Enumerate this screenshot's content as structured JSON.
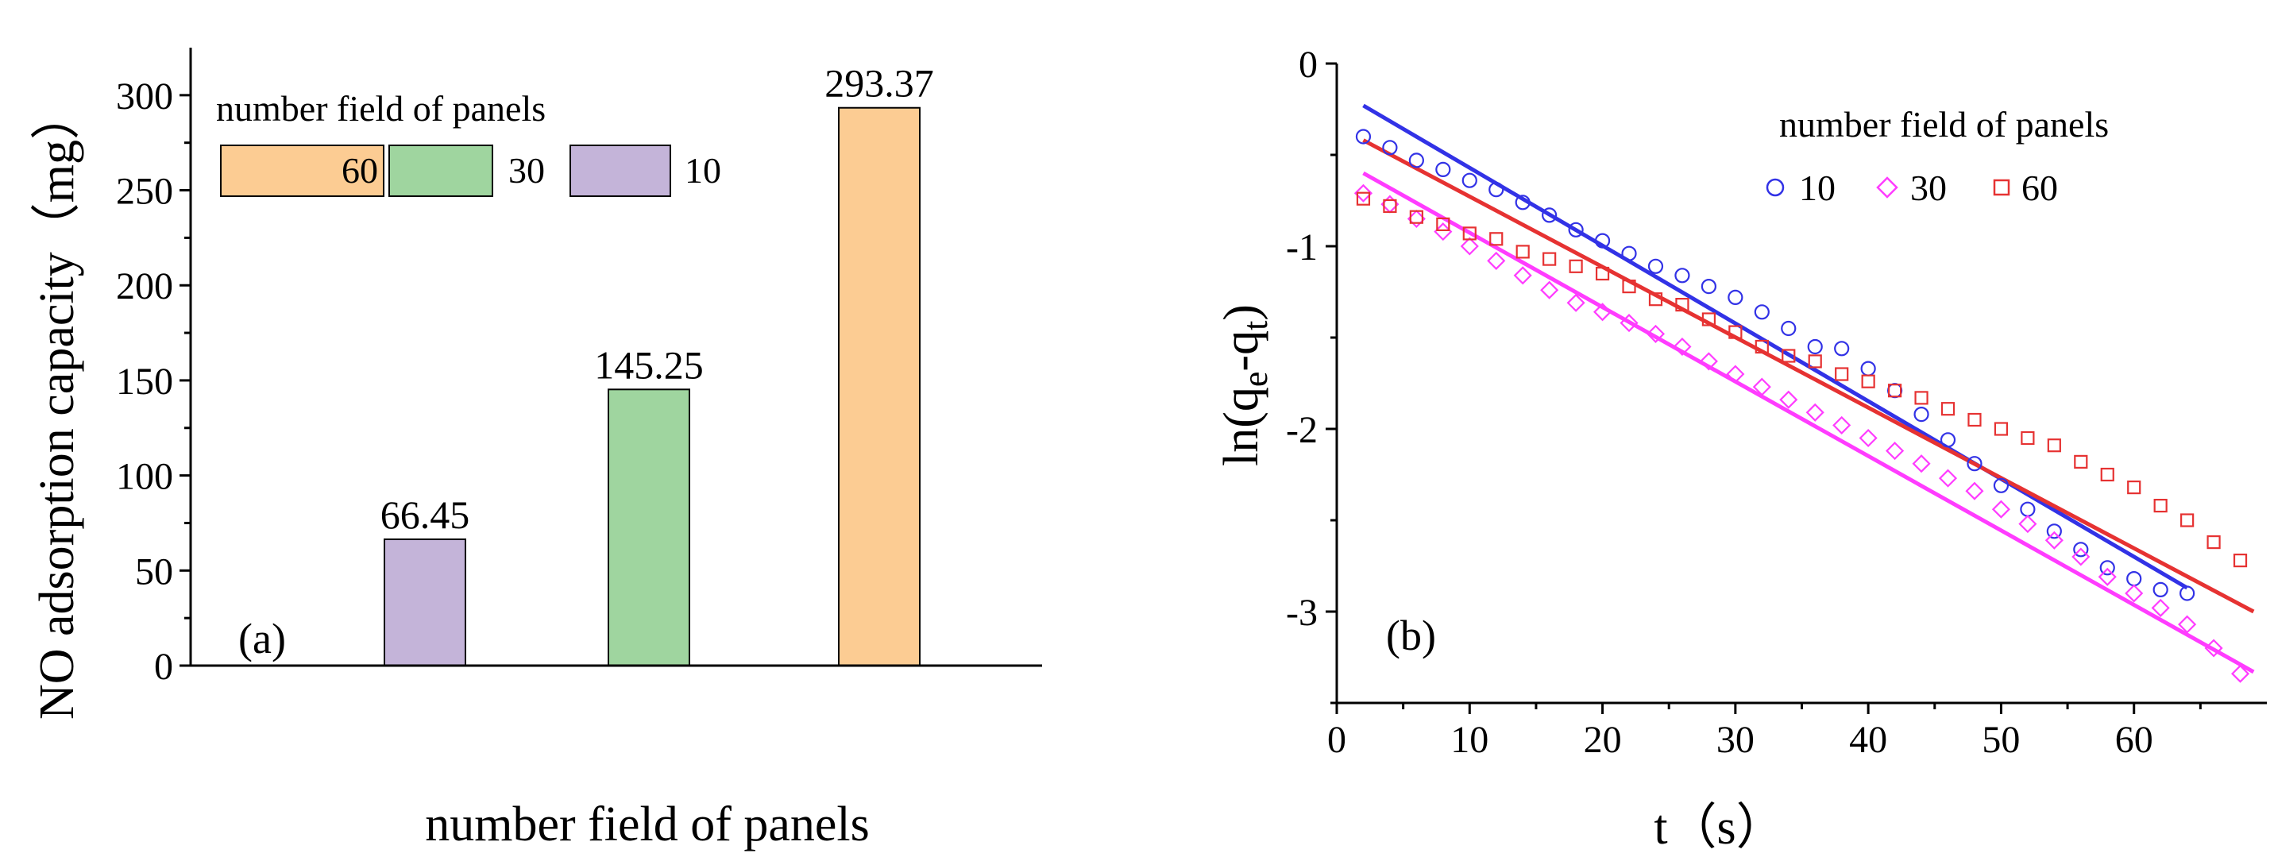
{
  "chart_data": [
    {
      "type": "bar",
      "panel_label": "(a)",
      "title": "",
      "xlabel": "number field of panels",
      "ylabel": "NO adsorption capacity（mg）",
      "ylim": [
        0,
        325
      ],
      "yticks": [
        "0",
        "50",
        "100",
        "150",
        "200",
        "250",
        "300"
      ],
      "ytick_values": [
        0,
        50,
        100,
        150,
        200,
        250,
        300
      ],
      "categories": [
        "10",
        "30",
        "60"
      ],
      "values": [
        66.45,
        145.25,
        293.37
      ],
      "value_labels": [
        "66.45",
        "145.25",
        "293.37"
      ],
      "colors": [
        "#C4B4D9",
        "#9FD59F",
        "#FCCC93"
      ],
      "legend": {
        "title": "number field of panels",
        "placement": "top-left",
        "entries": [
          {
            "label": "60",
            "color": "#FCCC93"
          },
          {
            "label": "30",
            "color": "#9FD59F"
          },
          {
            "label": "10",
            "color": "#C4B4D9"
          }
        ]
      }
    },
    {
      "type": "scatter",
      "panel_label": "(b)",
      "title": "",
      "xlabel": "t（s）",
      "ylabel_main": "ln(q",
      "ylabel_sub1": "e",
      "ylabel_mid": "-q",
      "ylabel_sub2": "t",
      "ylabel_end": ")",
      "xlim": [
        0,
        70
      ],
      "ylim": [
        -3.5,
        0
      ],
      "xticks": [
        "0",
        "10",
        "20",
        "30",
        "40",
        "50",
        "60"
      ],
      "xtick_values": [
        0,
        10,
        20,
        30,
        40,
        50,
        60
      ],
      "yticks": [
        "0",
        "-1",
        "-2",
        "-3"
      ],
      "ytick_values": [
        0,
        -1,
        -2,
        -3
      ],
      "legend": {
        "title": "number field of panels",
        "placement": "top-right",
        "entries": [
          {
            "label": "10",
            "marker": "circle",
            "color": "#3232E6"
          },
          {
            "label": "30",
            "marker": "diamond",
            "color": "#FF3CFF"
          },
          {
            "label": "60",
            "marker": "square",
            "color": "#E63232"
          }
        ]
      },
      "series": [
        {
          "name": "10",
          "marker": "circle",
          "color": "#3232E6",
          "x": [
            2,
            4,
            6,
            8,
            10,
            12,
            14,
            16,
            18,
            20,
            22,
            24,
            26,
            28,
            30,
            32,
            34,
            36,
            38,
            40,
            42,
            44,
            46,
            48,
            50,
            52,
            54,
            56,
            58,
            60,
            62,
            64
          ],
          "y": [
            -0.4,
            -0.46,
            -0.53,
            -0.58,
            -0.64,
            -0.69,
            -0.76,
            -0.83,
            -0.91,
            -0.97,
            -1.04,
            -1.11,
            -1.16,
            -1.22,
            -1.28,
            -1.36,
            -1.45,
            -1.55,
            -1.56,
            -1.67,
            -1.79,
            -1.92,
            -2.06,
            -2.19,
            -2.31,
            -2.44,
            -2.56,
            -2.66,
            -2.76,
            -2.82,
            -2.88,
            -2.9
          ],
          "fit": {
            "x": [
              2,
              64
            ],
            "y": [
              -0.23,
              -2.87
            ]
          }
        },
        {
          "name": "30",
          "marker": "diamond",
          "color": "#FF3CFF",
          "x": [
            2,
            4,
            6,
            8,
            10,
            12,
            14,
            16,
            18,
            20,
            22,
            24,
            26,
            28,
            30,
            32,
            34,
            36,
            38,
            40,
            42,
            44,
            46,
            48,
            50,
            52,
            54,
            56,
            58,
            60,
            62,
            64,
            66,
            68
          ],
          "y": [
            -0.71,
            -0.77,
            -0.85,
            -0.92,
            -1.0,
            -1.08,
            -1.16,
            -1.24,
            -1.31,
            -1.36,
            -1.42,
            -1.48,
            -1.55,
            -1.63,
            -1.7,
            -1.77,
            -1.84,
            -1.91,
            -1.98,
            -2.05,
            -2.12,
            -2.19,
            -2.27,
            -2.34,
            -2.44,
            -2.52,
            -2.61,
            -2.7,
            -2.81,
            -2.9,
            -2.98,
            -3.07,
            -3.2,
            -3.34
          ],
          "fit": {
            "x": [
              2,
              69
            ],
            "y": [
              -0.6,
              -3.33
            ]
          }
        },
        {
          "name": "60",
          "marker": "square",
          "color": "#E63232",
          "x": [
            2,
            4,
            6,
            8,
            10,
            12,
            14,
            16,
            18,
            20,
            22,
            24,
            26,
            28,
            30,
            32,
            34,
            36,
            38,
            40,
            42,
            44,
            46,
            48,
            50,
            52,
            54,
            56,
            58,
            60,
            62,
            64,
            66,
            68
          ],
          "y": [
            -0.74,
            -0.78,
            -0.84,
            -0.88,
            -0.93,
            -0.96,
            -1.03,
            -1.07,
            -1.11,
            -1.15,
            -1.22,
            -1.29,
            -1.32,
            -1.4,
            -1.47,
            -1.55,
            -1.6,
            -1.63,
            -1.7,
            -1.74,
            -1.79,
            -1.83,
            -1.89,
            -1.95,
            -2.0,
            -2.05,
            -2.09,
            -2.18,
            -2.25,
            -2.32,
            -2.42,
            -2.5,
            -2.62,
            -2.72
          ],
          "fit": {
            "x": [
              2,
              69
            ],
            "y": [
              -0.42,
              -3.0
            ]
          }
        }
      ]
    }
  ]
}
